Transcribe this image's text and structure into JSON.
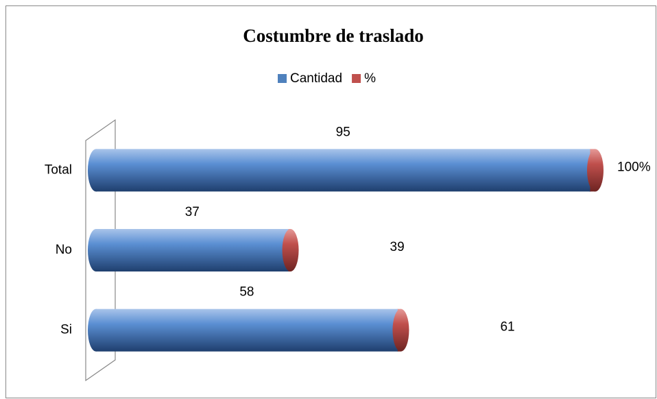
{
  "chart_data": {
    "type": "bar",
    "orientation": "horizontal",
    "stacked": true,
    "style": "cylinder",
    "title": "Costumbre de traslado",
    "categories": [
      "Si",
      "No",
      "Total"
    ],
    "series": [
      {
        "name": "Cantidad",
        "color": "#4f81bd",
        "values": [
          58,
          37,
          95
        ]
      },
      {
        "name": "%",
        "color": "#c0504d",
        "values": [
          0.61,
          0.39,
          1
        ],
        "value_labels": [
          "61",
          "39",
          "100%"
        ]
      }
    ],
    "legend": "top"
  }
}
